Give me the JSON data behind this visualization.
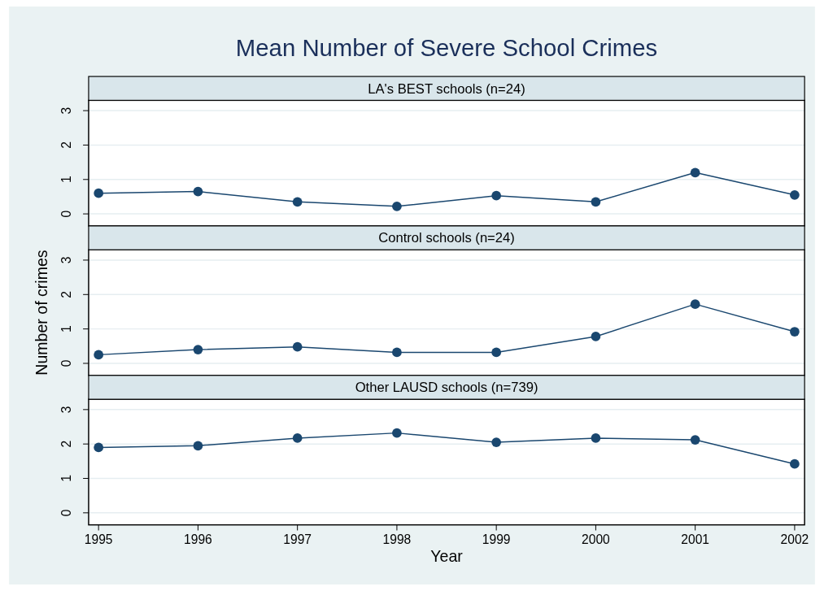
{
  "chart_data": [
    {
      "type": "line",
      "title": "Mean Number of Severe School Crimes",
      "subtitle": "LA's BEST schools (n=24)",
      "x": [
        1995,
        1996,
        1997,
        1998,
        1999,
        2000,
        2001,
        2002
      ],
      "series": [
        {
          "color": "#1a476f",
          "values": [
            0.6,
            0.65,
            0.35,
            0.22,
            0.53,
            0.35,
            1.2,
            0.55
          ]
        }
      ],
      "xlim": [
        1994.9,
        2002.1
      ],
      "ylim": [
        -0.35,
        3.3
      ],
      "yticks": [
        0,
        1,
        2,
        3
      ],
      "grid": "y",
      "marker": "circle",
      "tick_labels": "y"
    },
    {
      "type": "line",
      "subtitle": "Control schools (n=24)",
      "ylabel": "Number of crimes",
      "x": [
        1995,
        1996,
        1997,
        1998,
        1999,
        2000,
        2001,
        2002
      ],
      "series": [
        {
          "color": "#1a476f",
          "values": [
            0.25,
            0.4,
            0.48,
            0.32,
            0.32,
            0.78,
            1.72,
            0.92
          ]
        }
      ],
      "xlim": [
        1994.9,
        2002.1
      ],
      "ylim": [
        -0.35,
        3.3
      ],
      "yticks": [
        0,
        1,
        2,
        3
      ],
      "grid": "y",
      "marker": "circle",
      "tick_labels": "y"
    },
    {
      "type": "line",
      "subtitle": "Other LAUSD schools (n=739)",
      "xlabel": "Year",
      "x": [
        1995,
        1996,
        1997,
        1998,
        1999,
        2000,
        2001,
        2002
      ],
      "series": [
        {
          "color": "#1a476f",
          "values": [
            1.9,
            1.95,
            2.17,
            2.32,
            2.05,
            2.17,
            2.12,
            1.42
          ]
        }
      ],
      "xlim": [
        1994.9,
        2002.1
      ],
      "xticks": [
        1995,
        1996,
        1997,
        1998,
        1999,
        2000,
        2001,
        2002
      ],
      "ylim": [
        -0.35,
        3.3
      ],
      "yticks": [
        0,
        1,
        2,
        3
      ],
      "grid": "y",
      "marker": "circle"
    }
  ]
}
